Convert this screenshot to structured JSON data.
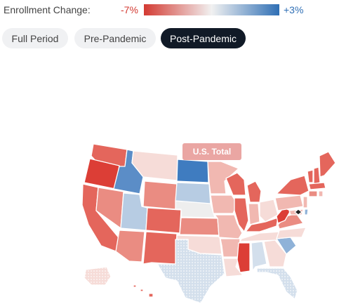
{
  "legend": {
    "title": "Enrollment Change:",
    "min_label": "-7%",
    "max_label": "+3%",
    "min_color": "#d33a32",
    "mid_color": "#f1f1f1",
    "max_color": "#2f6fb5"
  },
  "tabs": [
    {
      "label": "Full Period",
      "active": false
    },
    {
      "label": "Pre-Pandemic",
      "active": false
    },
    {
      "label": "Post-Pandemic",
      "active": true
    }
  ],
  "tooltip": {
    "label": "U.S. Total"
  },
  "colors": {
    "strong_red": "#dc3e36",
    "red": "#e4665c",
    "mid_red": "#ea8c82",
    "light_red": "#f1b8b1",
    "pale_red": "#f6dcd8",
    "neutral": "#eeeeee",
    "pale_blue": "#d3dfec",
    "light_blue": "#b7cce3",
    "mid_blue": "#8fb2d8",
    "blue": "#5b8dc7",
    "strong_blue": "#3f7cc0"
  }
}
